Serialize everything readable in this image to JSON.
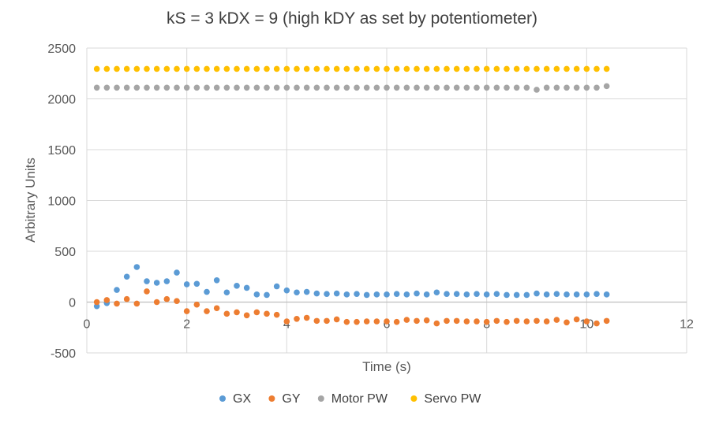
{
  "chart_data": {
    "type": "scatter",
    "title": "kS = 3 kDX = 9 (high kDY as set by potentiometer)",
    "xlabel": "Time (s)",
    "ylabel": "Arbitrary Units",
    "xlim": [
      0,
      12
    ],
    "ylim": [
      -500,
      2500
    ],
    "x_ticks": [
      "0",
      "2",
      "4",
      "6",
      "8",
      "10",
      "12"
    ],
    "y_ticks": [
      "-500",
      "0",
      "500",
      "1000",
      "1500",
      "2000",
      "2500"
    ],
    "grid": true,
    "legend_position": "bottom",
    "colors": {
      "GX": "#5b9bd5",
      "GY": "#ed7d31",
      "Motor PW": "#a5a5a5",
      "Servo PW": "#ffc000"
    },
    "x": [
      0.2,
      0.4,
      0.6,
      0.8,
      1.0,
      1.2,
      1.4,
      1.6,
      1.8,
      2.0,
      2.2,
      2.4,
      2.6,
      2.8,
      3.0,
      3.2,
      3.4,
      3.6,
      3.8,
      4.0,
      4.2,
      4.4,
      4.6,
      4.8,
      5.0,
      5.2,
      5.4,
      5.6,
      5.8,
      6.0,
      6.2,
      6.4,
      6.6,
      6.8,
      7.0,
      7.2,
      7.4,
      7.6,
      7.8,
      8.0,
      8.2,
      8.4,
      8.6,
      8.8,
      9.0,
      9.2,
      9.4,
      9.6,
      9.8,
      10.0,
      10.2,
      10.4
    ],
    "series": [
      {
        "name": "GX",
        "values": [
          -40,
          -10,
          120,
          250,
          345,
          205,
          190,
          205,
          290,
          175,
          180,
          100,
          215,
          95,
          160,
          140,
          75,
          70,
          155,
          115,
          95,
          100,
          85,
          80,
          85,
          75,
          80,
          70,
          75,
          75,
          80,
          75,
          85,
          75,
          95,
          80,
          80,
          75,
          80,
          75,
          80,
          70,
          70,
          70,
          85,
          75,
          80,
          75,
          75,
          75,
          80,
          75
        ]
      },
      {
        "name": "GY",
        "values": [
          0,
          20,
          -15,
          30,
          -15,
          105,
          0,
          30,
          10,
          -90,
          -25,
          -90,
          -60,
          -115,
          -100,
          -130,
          -100,
          -115,
          -125,
          -190,
          -165,
          -155,
          -185,
          -185,
          -170,
          -195,
          -195,
          -190,
          -190,
          -190,
          -195,
          -175,
          -185,
          -180,
          -210,
          -185,
          -185,
          -190,
          -190,
          -195,
          -185,
          -195,
          -185,
          -190,
          -185,
          -190,
          -175,
          -200,
          -170,
          -190,
          -210,
          -185
        ]
      },
      {
        "name": "Motor PW",
        "values": [
          2110,
          2110,
          2110,
          2110,
          2110,
          2110,
          2110,
          2110,
          2110,
          2110,
          2110,
          2110,
          2110,
          2110,
          2110,
          2110,
          2110,
          2110,
          2110,
          2110,
          2110,
          2110,
          2110,
          2110,
          2110,
          2110,
          2110,
          2110,
          2110,
          2110,
          2110,
          2110,
          2110,
          2110,
          2110,
          2110,
          2110,
          2110,
          2110,
          2110,
          2110,
          2110,
          2110,
          2110,
          2090,
          2110,
          2110,
          2110,
          2110,
          2110,
          2110,
          2125
        ]
      },
      {
        "name": "Servo PW",
        "values": [
          2295,
          2295,
          2295,
          2295,
          2295,
          2295,
          2295,
          2295,
          2295,
          2295,
          2295,
          2295,
          2295,
          2295,
          2295,
          2295,
          2295,
          2295,
          2295,
          2295,
          2295,
          2295,
          2295,
          2295,
          2295,
          2295,
          2295,
          2295,
          2295,
          2295,
          2295,
          2295,
          2295,
          2295,
          2295,
          2295,
          2295,
          2295,
          2295,
          2295,
          2295,
          2295,
          2295,
          2295,
          2295,
          2295,
          2295,
          2295,
          2295,
          2295,
          2295,
          2295
        ]
      }
    ]
  }
}
